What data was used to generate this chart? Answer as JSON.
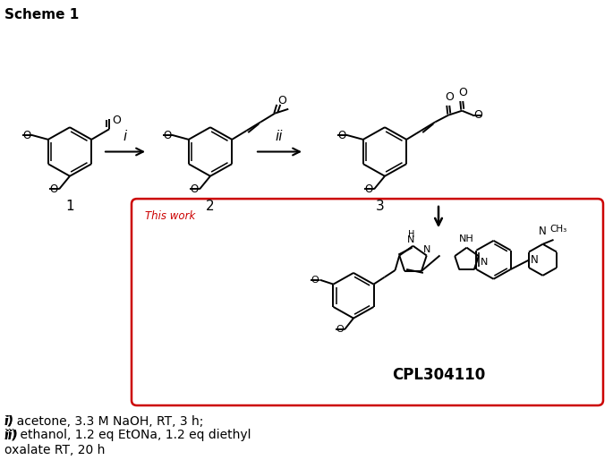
{
  "title": "Scheme 1",
  "title_fontsize": 11,
  "background_color": "#ffffff",
  "this_work_label": "This work",
  "this_work_color": "#cc0000",
  "box_color": "#cc0000",
  "compound_labels": [
    "1",
    "2",
    "3"
  ],
  "reaction_labels": [
    "i",
    "ii"
  ],
  "product_label": "CPL304110",
  "product_label_fontsize": 12,
  "footnote": "i) acetone, 3.3 M NaOH, RT, 3 h; ii) ethanol, 1.2 eq EtONa, 1.2 eq diethyl\noxalate RT, 20 h",
  "footnote_fontsize": 10.5
}
